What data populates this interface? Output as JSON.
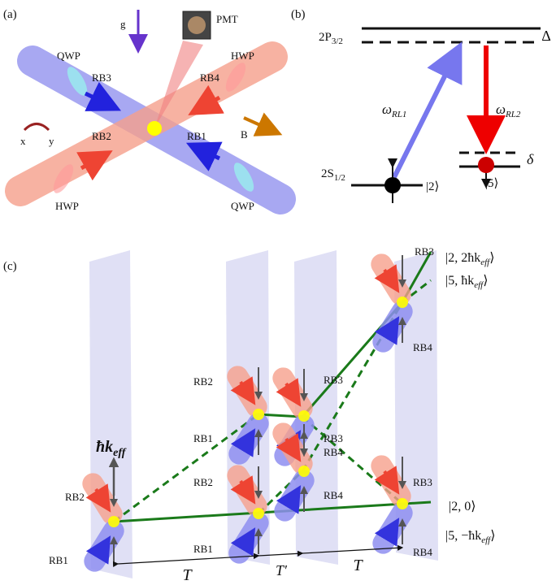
{
  "panel_a": {
    "label": "(a)",
    "g": "g",
    "pmt": "PMT",
    "qwp_top": "QWP",
    "hwp_top": "HWP",
    "rb3": "RB3",
    "rb4": "RB4",
    "rb2": "RB2",
    "rb1": "RB1",
    "x": "x",
    "y": "y",
    "b": "B",
    "hwp_bottom": "HWP",
    "qwp_bottom": "QWP"
  },
  "panel_b": {
    "label": "(b)",
    "upper_level": {
      "main": "2P",
      "sub": "3/2"
    },
    "delta_upper": "Δ",
    "omega_1": {
      "main": "ω",
      "sub": "RL1"
    },
    "omega_2": {
      "main": "ω",
      "sub": "RL2"
    },
    "lower_level": {
      "main": "2S",
      "sub": "1/2"
    },
    "state_2": "|2⟩",
    "delta_lower": "δ",
    "state_5": "|5⟩"
  },
  "panel_c": {
    "label": "(c)",
    "beam_labels": [
      "RB3",
      "RB4",
      "RB2",
      "RB1",
      "RB3",
      "RB3",
      "RB4",
      "RB2",
      "RB4",
      "RB3",
      "RB4",
      "RB2",
      "RB1",
      "RB1"
    ],
    "states": [
      {
        "main": "|2, 2ħk",
        "sub": "eff",
        "end": "⟩"
      },
      {
        "main": "|5, ħk",
        "sub": "eff",
        "end": "⟩"
      },
      {
        "main": "|2, 0⟩"
      },
      {
        "main": "|5, −ħk",
        "sub": "eff",
        "end": "⟩"
      }
    ],
    "momentum": {
      "main": "ħk",
      "sub": "eff"
    },
    "intervals": [
      "T",
      "T′",
      "T"
    ]
  }
}
